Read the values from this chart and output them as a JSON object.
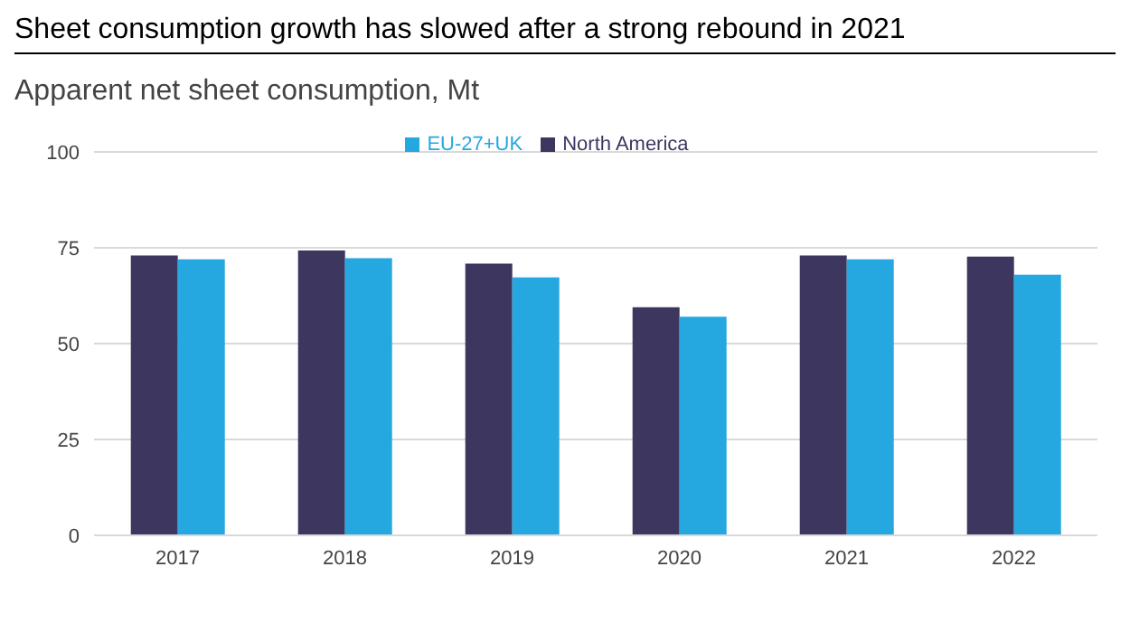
{
  "chart_data": {
    "type": "bar",
    "title": "Sheet consumption growth has slowed after a strong rebound in 2021",
    "subtitle": "Apparent net sheet consumption, Mt",
    "categories": [
      "2017",
      "2018",
      "2019",
      "2020",
      "2021",
      "2022"
    ],
    "series": [
      {
        "name": "North America",
        "color": "#3d3760",
        "values": [
          73.0,
          74.3,
          70.9,
          59.5,
          73.0,
          72.7
        ]
      },
      {
        "name": "EU-27+UK",
        "color": "#25a7e0",
        "values": [
          72.0,
          72.3,
          67.3,
          57.0,
          72.0,
          68.0
        ]
      }
    ],
    "ylim": [
      0,
      100
    ],
    "yticks": [
      0,
      25,
      50,
      75,
      100
    ],
    "grid": "y",
    "legend": "top"
  }
}
